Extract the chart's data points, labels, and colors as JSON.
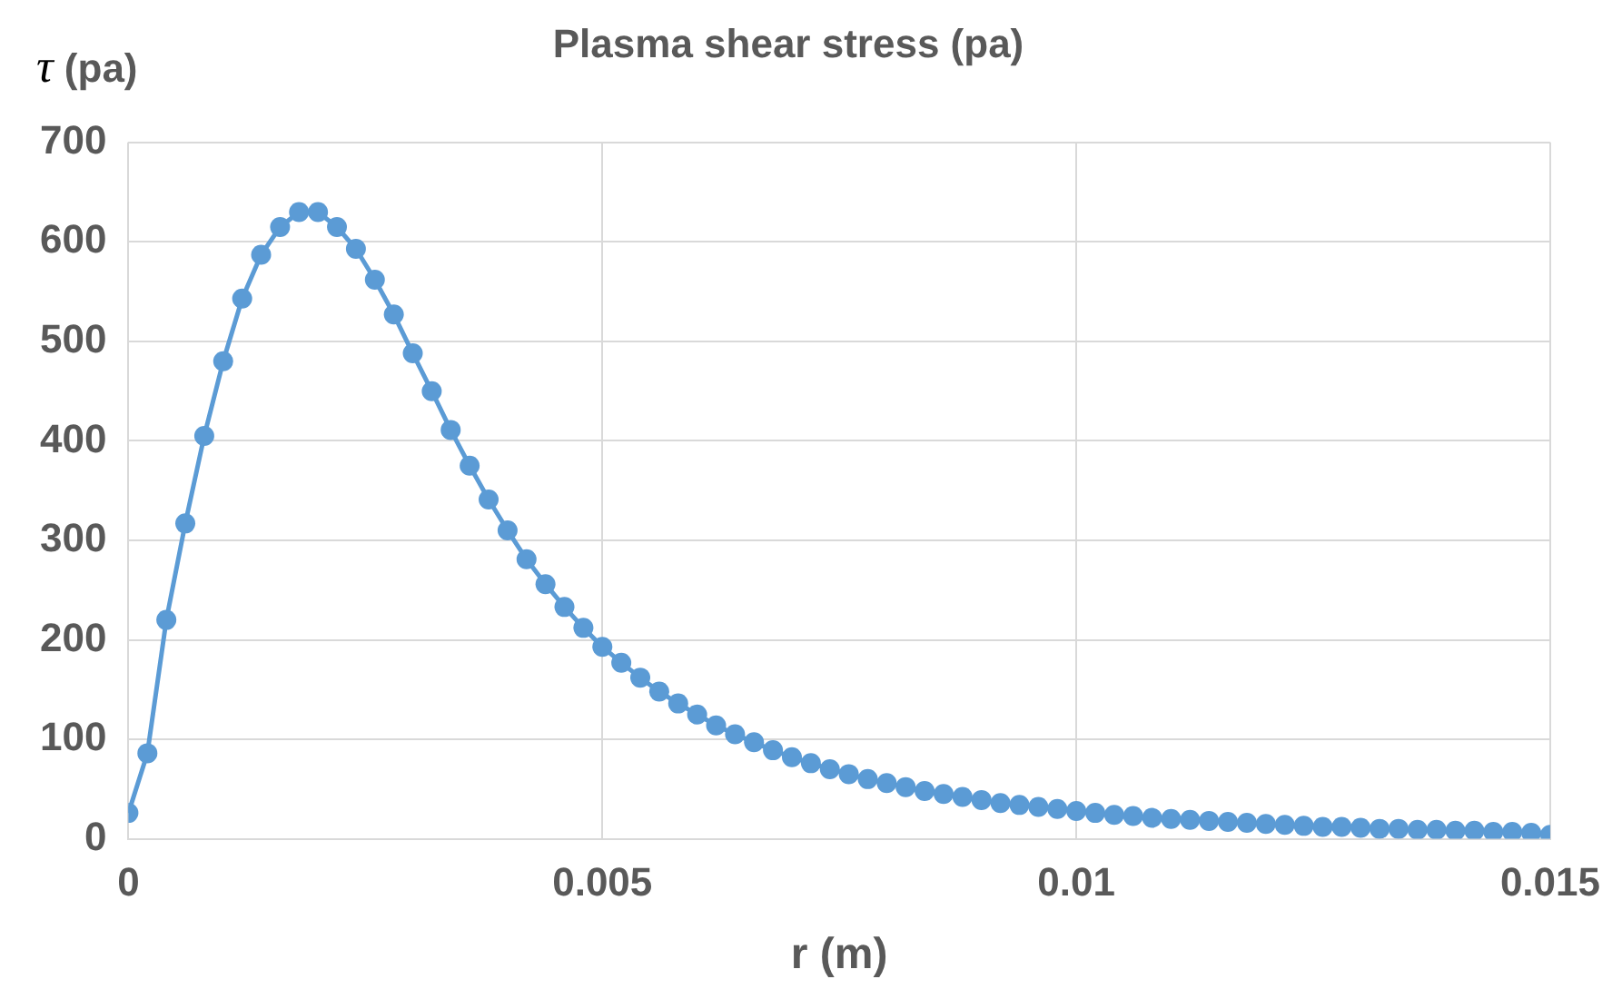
{
  "chart_data": {
    "type": "line",
    "title": "Plasma shear stress (pa)",
    "xlabel": "r (m)",
    "ylabel": "τ (pa)",
    "xlim": [
      0,
      0.015
    ],
    "xticks": [
      0,
      0.005,
      0.01,
      0.015
    ],
    "ylim": [
      0,
      700
    ],
    "yticks": [
      0,
      100,
      200,
      300,
      400,
      500,
      600,
      700
    ],
    "grid": true,
    "legend": false,
    "marker": "circle",
    "line_style": "solid",
    "series": [
      {
        "color": "#5b9bd5",
        "x": [
          0,
          0.0002,
          0.0004,
          0.0006,
          0.0008,
          0.001,
          0.0012,
          0.0014,
          0.0016,
          0.0018,
          0.002,
          0.0022,
          0.0024,
          0.0026,
          0.0028,
          0.003,
          0.0032,
          0.0034,
          0.0036,
          0.0038,
          0.004,
          0.0042,
          0.0044,
          0.0046,
          0.0048,
          0.005,
          0.0052,
          0.0054,
          0.0056,
          0.0058,
          0.006,
          0.0062,
          0.0064,
          0.0066,
          0.0068,
          0.007,
          0.0072,
          0.0074,
          0.0076,
          0.0078,
          0.008,
          0.0082,
          0.0084,
          0.0086,
          0.0088,
          0.009,
          0.0092,
          0.0094,
          0.0096,
          0.0098,
          0.01,
          0.0102,
          0.0104,
          0.0106,
          0.0108,
          0.011,
          0.0112,
          0.0114,
          0.0116,
          0.0118,
          0.012,
          0.0122,
          0.0124,
          0.0126,
          0.0128,
          0.013,
          0.0132,
          0.0134,
          0.0136,
          0.0138,
          0.014,
          0.0142,
          0.0144,
          0.0146,
          0.0148,
          0.015
        ],
        "values": [
          26,
          86,
          220,
          317,
          405,
          480,
          543,
          587,
          615,
          630,
          630,
          615,
          593,
          562,
          527,
          488,
          450,
          411,
          375,
          341,
          310,
          281,
          256,
          233,
          212,
          193,
          177,
          162,
          148,
          136,
          125,
          114,
          105,
          97,
          89,
          82,
          76,
          70,
          65,
          60,
          56,
          52,
          48,
          45,
          42,
          39,
          36,
          34,
          32,
          30,
          28,
          26,
          24,
          23,
          21,
          20,
          19,
          18,
          17,
          16,
          15,
          14,
          13,
          12,
          12,
          11,
          10,
          10,
          9,
          9,
          8,
          8,
          7,
          7,
          6,
          4
        ]
      }
    ]
  }
}
